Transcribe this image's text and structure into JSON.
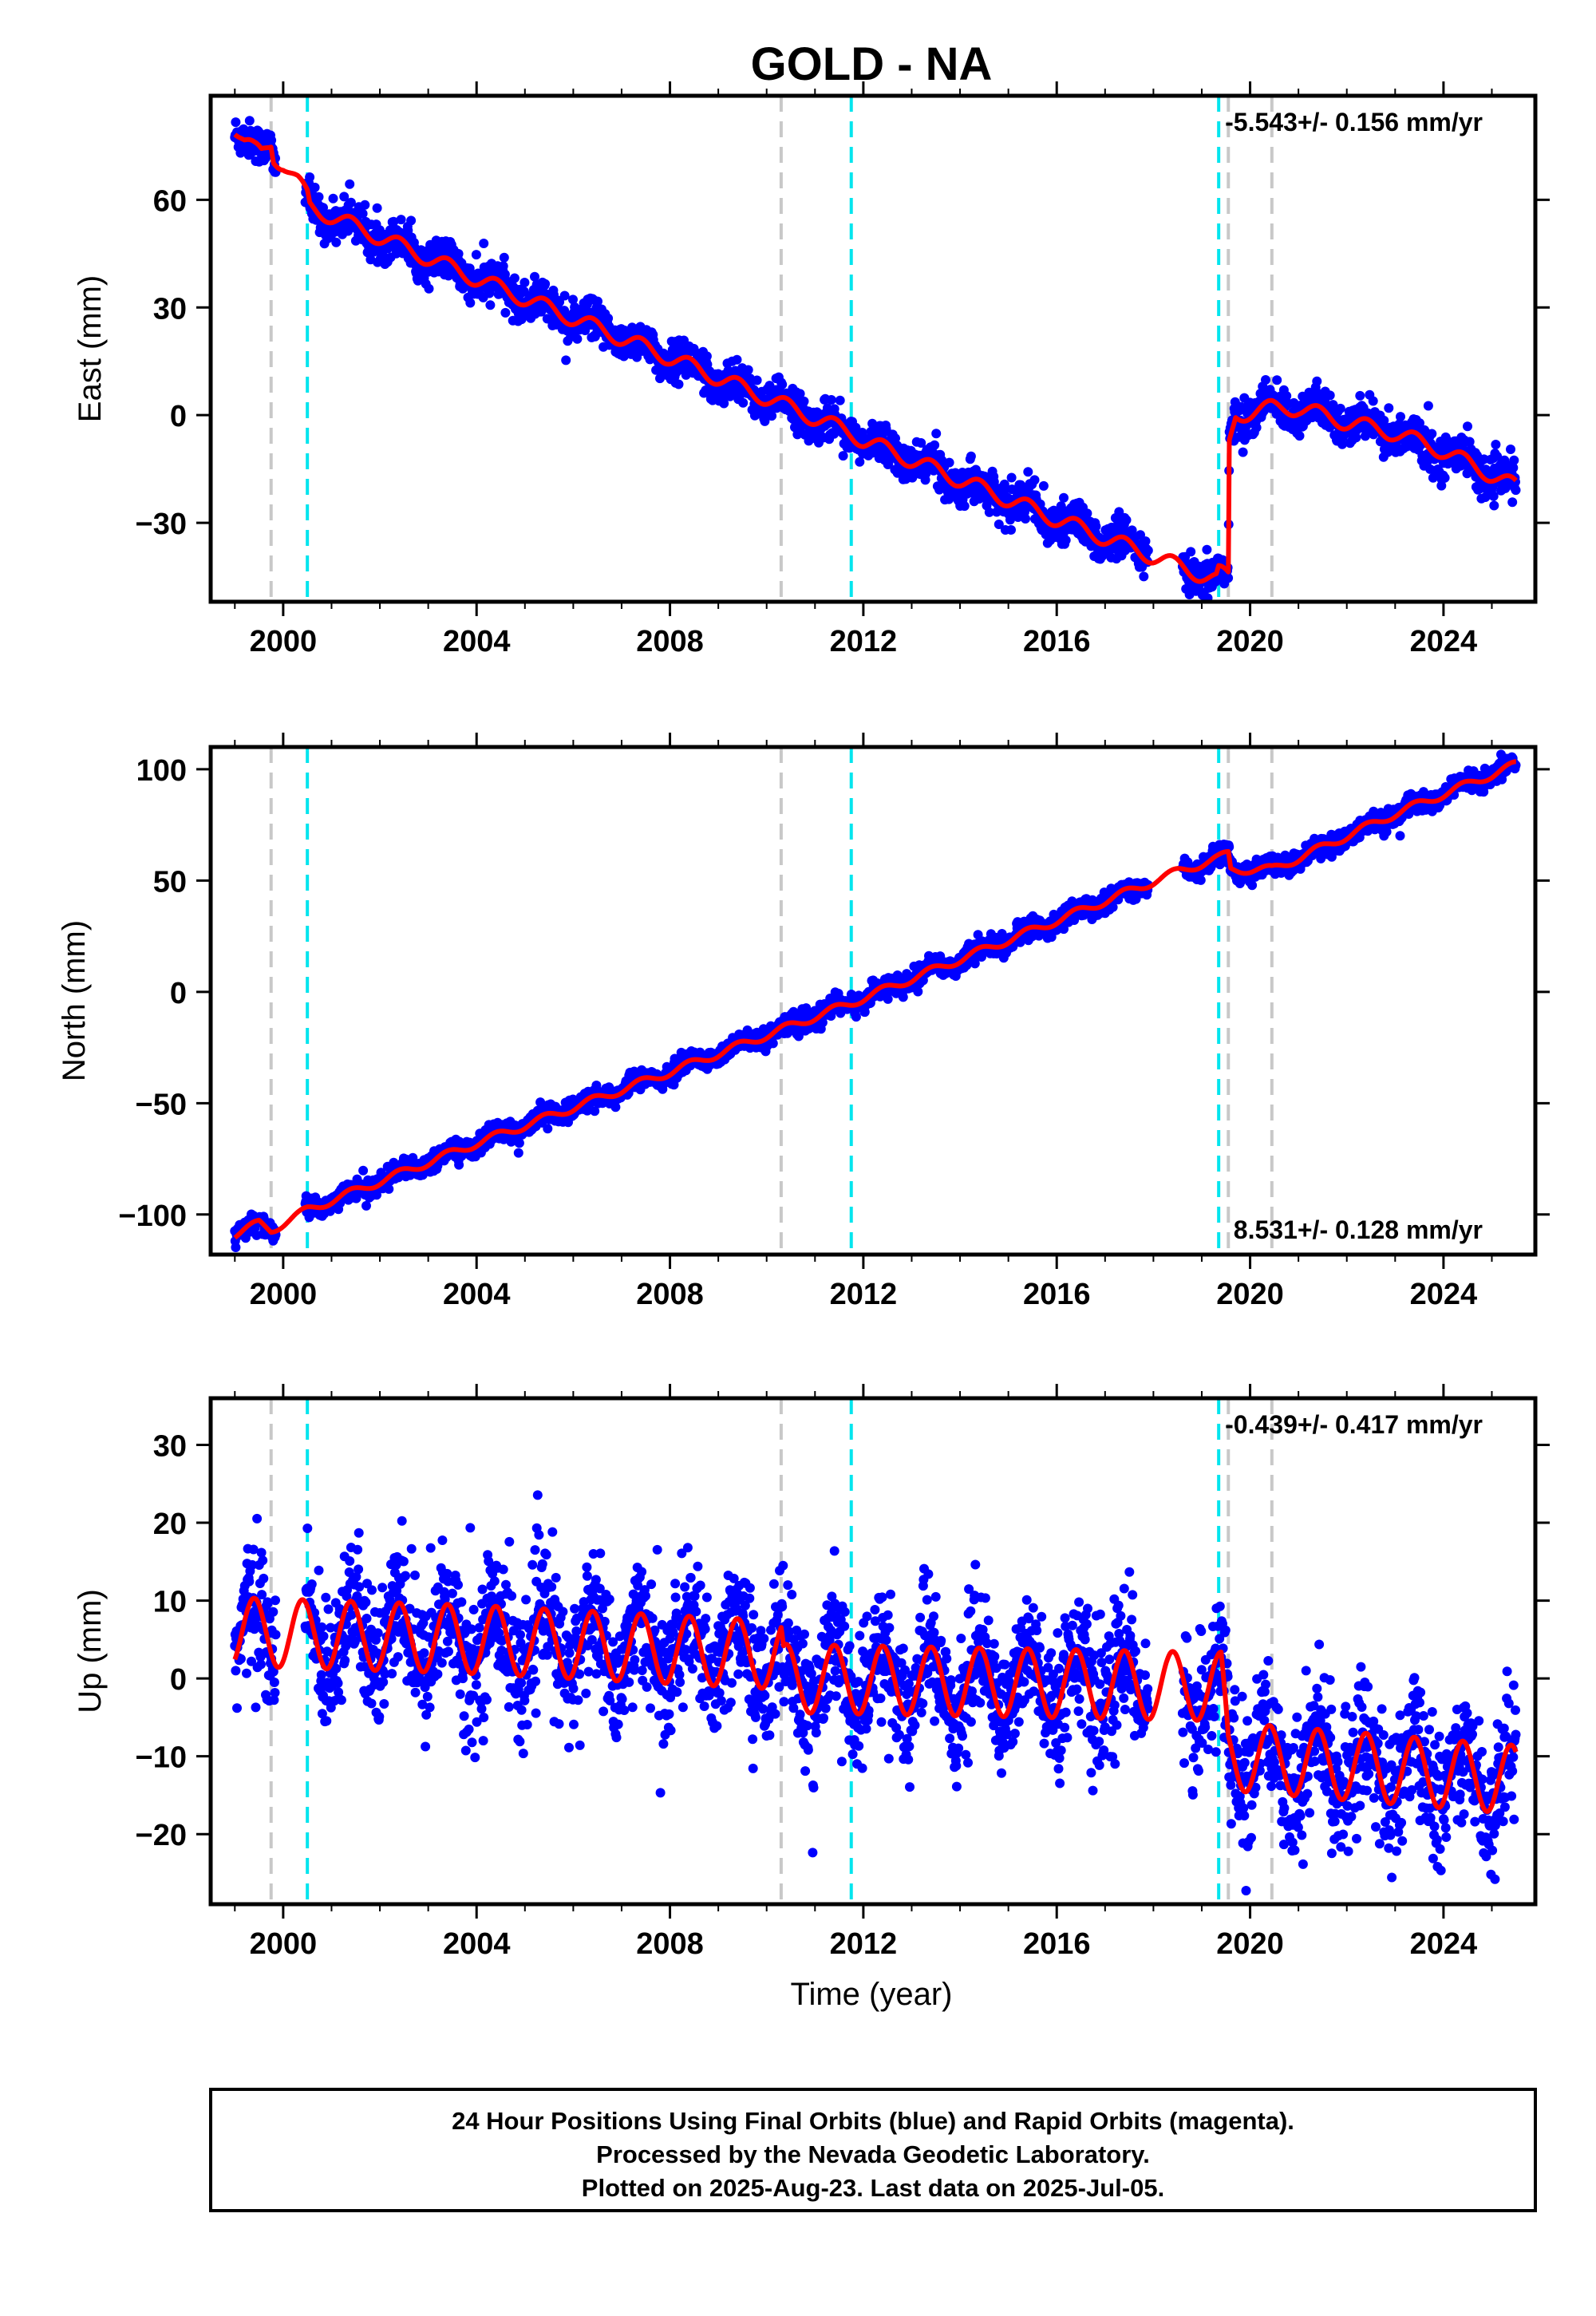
{
  "title": "GOLD - NA",
  "xlabel": "Time (year)",
  "footer": {
    "line1": "24 Hour Positions Using Final Orbits (blue) and Rapid Orbits (magenta).",
    "line2": "Processed by the Nevada Geodetic Laboratory.",
    "line3": "Plotted on 2025-Aug-23. Last data on 2025-Jul-05."
  },
  "colors": {
    "data": "#0000ff",
    "model": "#ff0000",
    "equipment_change": "#c8c8c8",
    "earthquake": "#00e5ee",
    "frame": "#000000"
  },
  "chart_data": [
    {
      "type": "scatter",
      "component": "East",
      "ylabel": "East (mm)",
      "rate_label": "-5.543+/- 0.156 mm/yr",
      "xlim": [
        1998.5,
        2025.9
      ],
      "ylim": [
        -52,
        89
      ],
      "x_ticks": [
        2000,
        2004,
        2008,
        2012,
        2016,
        2020,
        2024
      ],
      "y_ticks": [
        60,
        30,
        0,
        -30
      ],
      "y_tick_labels": [
        "60",
        "30",
        "0",
        "−30"
      ],
      "vlines_gray": [
        1999.75,
        2010.3,
        2019.55,
        2020.45
      ],
      "vlines_cyan": [
        2000.5,
        2011.75,
        2019.35
      ],
      "model_knots": [
        [
          1999.0,
          80
        ],
        [
          1999.2,
          76
        ],
        [
          1999.4,
          74
        ],
        [
          1999.55,
          73
        ],
        [
          1999.75,
          76
        ],
        [
          1999.8,
          72
        ],
        [
          2000.0,
          70
        ],
        [
          2000.3,
          65
        ],
        [
          2000.5,
          61
        ],
        [
          2000.55,
          58
        ],
        [
          2004,
          38
        ],
        [
          2008,
          16
        ],
        [
          2011.75,
          -5
        ],
        [
          2012,
          -7
        ],
        [
          2016,
          -29
        ],
        [
          2018.5,
          -42
        ],
        [
          2019.3,
          -46
        ],
        [
          2019.35,
          -44
        ],
        [
          2019.55,
          -45
        ],
        [
          2019.57,
          -8
        ],
        [
          2019.7,
          0
        ],
        [
          2020.45,
          2
        ],
        [
          2021,
          2
        ],
        [
          2022,
          -2
        ],
        [
          2023,
          -5
        ],
        [
          2024,
          -10
        ],
        [
          2025.5,
          -20
        ]
      ],
      "seasonal_amplitude": 2.2,
      "noise": 2.6
    },
    {
      "type": "scatter",
      "component": "North",
      "ylabel": "North (mm)",
      "rate_label": "8.531+/- 0.128 mm/yr",
      "xlim": [
        1998.5,
        2025.9
      ],
      "ylim": [
        -118,
        110
      ],
      "x_ticks": [
        2000,
        2004,
        2008,
        2012,
        2016,
        2020,
        2024
      ],
      "y_ticks": [
        100,
        50,
        0,
        -50,
        -100
      ],
      "y_tick_labels": [
        "100",
        "50",
        "0",
        "−50",
        "−100"
      ],
      "vlines_gray": [
        1999.75,
        2010.3,
        2019.55,
        2020.45
      ],
      "vlines_cyan": [
        2000.5,
        2011.75,
        2019.35
      ],
      "model_knots": [
        [
          1999.0,
          -109
        ],
        [
          1999.5,
          -104
        ],
        [
          1999.75,
          -107
        ],
        [
          2000.5,
          -98
        ],
        [
          2004,
          -68
        ],
        [
          2008,
          -36
        ],
        [
          2011.75,
          -5
        ],
        [
          2016,
          32
        ],
        [
          2018.5,
          54
        ],
        [
          2019.35,
          60
        ],
        [
          2019.55,
          62
        ],
        [
          2019.6,
          55
        ],
        [
          2020.45,
          55
        ],
        [
          2021,
          60
        ],
        [
          2023,
          80
        ],
        [
          2025.5,
          102
        ]
      ],
      "seasonal_amplitude": 1.8,
      "noise": 2.2
    },
    {
      "type": "scatter",
      "component": "Up",
      "ylabel": "Up (mm)",
      "rate_label": "-0.439+/- 0.417 mm/yr",
      "xlim": [
        1998.5,
        2025.9
      ],
      "ylim": [
        -29,
        36
      ],
      "x_ticks": [
        2000,
        2004,
        2008,
        2012,
        2016,
        2020,
        2024
      ],
      "y_ticks": [
        30,
        20,
        10,
        0,
        -10,
        -20
      ],
      "y_tick_labels": [
        "30",
        "20",
        "10",
        "0",
        "−10",
        "−20"
      ],
      "vlines_gray": [
        1999.75,
        2010.3,
        2019.55,
        2020.45
      ],
      "vlines_cyan": [
        2000.5,
        2011.75,
        2019.35
      ],
      "model_knots": [
        [
          1999.0,
          6
        ],
        [
          2004,
          5
        ],
        [
          2010.3,
          3
        ],
        [
          2010.35,
          0
        ],
        [
          2019.0,
          -1
        ],
        [
          2019.4,
          -1
        ],
        [
          2019.55,
          -10
        ],
        [
          2025.5,
          -13
        ]
      ],
      "seasonal_amplitude": 4.4,
      "noise": 4.2
    }
  ]
}
